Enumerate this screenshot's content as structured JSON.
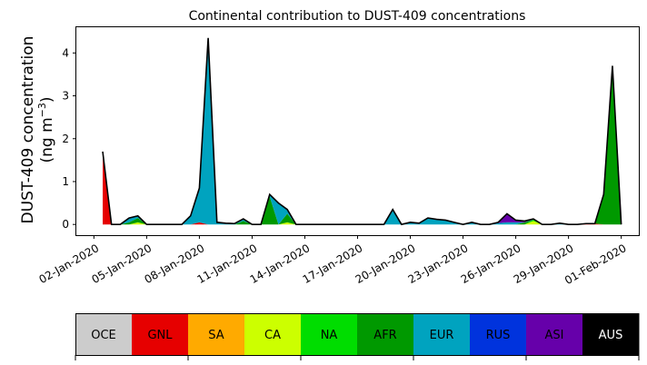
{
  "chart_data": {
    "type": "area",
    "title": "Continental contribution to DUST-409 concentrations",
    "ylabel_line1": "DUST-409 concentration",
    "ylabel_line2_prefix": "(ng m",
    "ylabel_line2_sup": "−3",
    "ylabel_line2_suffix": ")",
    "xlabel": "",
    "xlim": [
      "2020-01-01",
      "2020-02-02"
    ],
    "ylim": [
      -0.25,
      4.6
    ],
    "yticks": [
      0,
      1,
      2,
      3,
      4
    ],
    "ytick_labels": [
      "0",
      "1",
      "2",
      "3",
      "4"
    ],
    "xticks": [
      "2020-01-02",
      "2020-01-05",
      "2020-01-08",
      "2020-01-11",
      "2020-01-14",
      "2020-01-17",
      "2020-01-20",
      "2020-01-23",
      "2020-01-26",
      "2020-01-29",
      "2020-02-01"
    ],
    "xtick_labels": [
      "02-Jan-2020",
      "05-Jan-2020",
      "08-Jan-2020",
      "11-Jan-2020",
      "14-Jan-2020",
      "17-Jan-2020",
      "20-Jan-2020",
      "23-Jan-2020",
      "26-Jan-2020",
      "29-Jan-2020",
      "01-Feb-2020"
    ],
    "grid": false,
    "x": [
      "2020-01-02 12:00",
      "2020-01-03 00:00",
      "2020-01-03 12:00",
      "2020-01-04 00:00",
      "2020-01-04 12:00",
      "2020-01-05 00:00",
      "2020-01-05 12:00",
      "2020-01-06 00:00",
      "2020-01-06 12:00",
      "2020-01-07 00:00",
      "2020-01-07 12:00",
      "2020-01-08 00:00",
      "2020-01-08 12:00",
      "2020-01-09 00:00",
      "2020-01-09 12:00",
      "2020-01-10 00:00",
      "2020-01-10 12:00",
      "2020-01-11 00:00",
      "2020-01-11 12:00",
      "2020-01-12 00:00",
      "2020-01-12 12:00",
      "2020-01-13 00:00",
      "2020-01-13 12:00",
      "2020-01-14 00:00",
      "2020-01-14 12:00",
      "2020-01-15 00:00",
      "2020-01-15 12:00",
      "2020-01-16 00:00",
      "2020-01-16 12:00",
      "2020-01-17 00:00",
      "2020-01-17 12:00",
      "2020-01-18 00:00",
      "2020-01-18 12:00",
      "2020-01-19 00:00",
      "2020-01-19 12:00",
      "2020-01-20 00:00",
      "2020-01-20 12:00",
      "2020-01-21 00:00",
      "2020-01-21 12:00",
      "2020-01-22 00:00",
      "2020-01-22 12:00",
      "2020-01-23 00:00",
      "2020-01-23 12:00",
      "2020-01-24 00:00",
      "2020-01-24 12:00",
      "2020-01-25 00:00",
      "2020-01-25 12:00",
      "2020-01-26 00:00",
      "2020-01-26 12:00",
      "2020-01-27 00:00",
      "2020-01-27 12:00",
      "2020-01-28 00:00",
      "2020-01-28 12:00",
      "2020-01-29 00:00",
      "2020-01-29 12:00",
      "2020-01-30 00:00",
      "2020-01-30 12:00",
      "2020-01-31 00:00",
      "2020-01-31 12:00",
      "2020-02-01 00:00"
    ],
    "series": [
      {
        "name": "OCE",
        "color": "#cccccc",
        "values": [
          0,
          0,
          0,
          0,
          0,
          0,
          0,
          0,
          0,
          0,
          0,
          0,
          0,
          0,
          0,
          0,
          0,
          0,
          0,
          0,
          0,
          0,
          0,
          0,
          0,
          0,
          0,
          0,
          0,
          0,
          0,
          0,
          0,
          0,
          0,
          0,
          0,
          0,
          0,
          0,
          0,
          0,
          0,
          0,
          0,
          0,
          0,
          0,
          0,
          0,
          0,
          0,
          0,
          0,
          0,
          0,
          0,
          0,
          0,
          0
        ]
      },
      {
        "name": "GNL",
        "color": "#e60000",
        "values": [
          1.6,
          0,
          0,
          0,
          0,
          0,
          0,
          0,
          0,
          0,
          0,
          0.05,
          0,
          0,
          0,
          0,
          0,
          0,
          0,
          0,
          0,
          0,
          0,
          0,
          0,
          0,
          0,
          0,
          0,
          0,
          0,
          0,
          0,
          0,
          0,
          0,
          0,
          0,
          0,
          0,
          0,
          0,
          0,
          0,
          0,
          0,
          0,
          0,
          0,
          0,
          0,
          0,
          0,
          0,
          0,
          0.02,
          0.02,
          0,
          0,
          0
        ]
      },
      {
        "name": "SA",
        "color": "#ffaa00",
        "values": [
          0,
          0,
          0,
          0,
          0,
          0,
          0,
          0,
          0,
          0,
          0,
          0,
          0,
          0,
          0,
          0,
          0,
          0,
          0,
          0,
          0,
          0,
          0,
          0,
          0,
          0,
          0,
          0,
          0,
          0,
          0,
          0,
          0,
          0,
          0,
          0,
          0,
          0,
          0,
          0,
          0,
          0,
          0,
          0,
          0,
          0,
          0,
          0,
          0,
          0,
          0,
          0,
          0,
          0,
          0,
          0,
          0,
          0,
          0,
          0
        ]
      },
      {
        "name": "CA",
        "color": "#ccff00",
        "values": [
          0,
          0,
          0,
          0,
          0.05,
          0,
          0,
          0,
          0,
          0,
          0,
          0,
          0,
          0,
          0,
          0,
          0,
          0,
          0,
          0,
          0,
          0.05,
          0,
          0,
          0,
          0,
          0,
          0,
          0,
          0,
          0,
          0,
          0,
          0,
          0,
          0,
          0,
          0,
          0,
          0,
          0,
          0,
          0,
          0,
          0,
          0,
          0,
          0,
          0,
          0.08,
          0,
          0,
          0,
          0,
          0,
          0,
          0,
          0,
          0,
          0
        ]
      },
      {
        "name": "NA",
        "color": "#00dd00",
        "values": [
          0,
          0,
          0,
          0,
          0,
          0,
          0,
          0,
          0,
          0,
          0,
          0,
          0,
          0,
          0,
          0,
          0,
          0,
          0,
          0,
          0,
          0,
          0,
          0,
          0,
          0,
          0,
          0,
          0,
          0,
          0,
          0,
          0,
          0,
          0,
          0,
          0,
          0,
          0,
          0,
          0,
          0,
          0,
          0,
          0,
          0,
          0,
          0,
          0,
          0.03,
          0,
          0,
          0,
          0,
          0,
          0,
          0,
          0,
          0,
          0
        ]
      },
      {
        "name": "AFR",
        "color": "#009900",
        "values": [
          0,
          0,
          0,
          0.05,
          0.1,
          0,
          0,
          0,
          0,
          0,
          0,
          0,
          0,
          0,
          0,
          0,
          0.08,
          0,
          0,
          0.65,
          0,
          0.2,
          0,
          0,
          0,
          0,
          0,
          0,
          0,
          0,
          0,
          0,
          0,
          0,
          0,
          0,
          0,
          0,
          0,
          0,
          0,
          0,
          0,
          0,
          0,
          0,
          0,
          0,
          0.05,
          0,
          0,
          0,
          0,
          0,
          0,
          0,
          0,
          0.7,
          3.7,
          0
        ]
      },
      {
        "name": "EUR",
        "color": "#00a3bf",
        "values": [
          0.1,
          0,
          0,
          0.1,
          0.05,
          0,
          0,
          0,
          0,
          0,
          0.2,
          0.8,
          4.35,
          0.05,
          0.03,
          0.02,
          0.05,
          0,
          0,
          0.05,
          0.5,
          0.1,
          0,
          0,
          0,
          0,
          0,
          0,
          0,
          0,
          0,
          0,
          0,
          0.35,
          0,
          0.05,
          0.03,
          0.15,
          0.12,
          0.1,
          0.05,
          0,
          0.05,
          0,
          0,
          0.03,
          0.05,
          0.05,
          0,
          0.02,
          0,
          0,
          0.03,
          0,
          0,
          0,
          0,
          0,
          0,
          0
        ]
      },
      {
        "name": "RUS",
        "color": "#0033dd",
        "values": [
          0,
          0,
          0,
          0,
          0,
          0,
          0,
          0,
          0,
          0,
          0,
          0,
          0,
          0,
          0,
          0,
          0,
          0,
          0,
          0,
          0,
          0,
          0,
          0,
          0,
          0,
          0,
          0,
          0,
          0,
          0,
          0,
          0,
          0,
          0,
          0,
          0,
          0,
          0,
          0,
          0,
          0,
          0,
          0,
          0,
          0,
          0,
          0,
          0,
          0,
          0,
          0,
          0,
          0,
          0,
          0,
          0,
          0,
          0,
          0
        ]
      },
      {
        "name": "ASI",
        "color": "#6600aa",
        "values": [
          0,
          0,
          0,
          0,
          0,
          0,
          0,
          0,
          0,
          0,
          0,
          0,
          0,
          0,
          0,
          0,
          0,
          0,
          0,
          0,
          0,
          0,
          0,
          0,
          0,
          0,
          0,
          0,
          0,
          0,
          0,
          0,
          0,
          0,
          0,
          0,
          0,
          0,
          0,
          0,
          0,
          0,
          0,
          0,
          0,
          0.02,
          0.2,
          0.05,
          0.03,
          0,
          0,
          0,
          0,
          0,
          0,
          0,
          0,
          0,
          0,
          0
        ]
      },
      {
        "name": "AUS",
        "color": "#000000",
        "values": [
          0,
          0,
          0,
          0,
          0,
          0,
          0,
          0,
          0,
          0,
          0,
          0,
          0,
          0,
          0,
          0,
          0,
          0,
          0,
          0,
          0,
          0,
          0,
          0,
          0,
          0,
          0,
          0,
          0,
          0,
          0,
          0,
          0,
          0,
          0,
          0,
          0,
          0,
          0,
          0,
          0,
          0,
          0,
          0,
          0,
          0,
          0,
          0,
          0,
          0,
          0,
          0,
          0,
          0,
          0,
          0,
          0,
          0,
          0,
          0
        ]
      }
    ]
  }
}
